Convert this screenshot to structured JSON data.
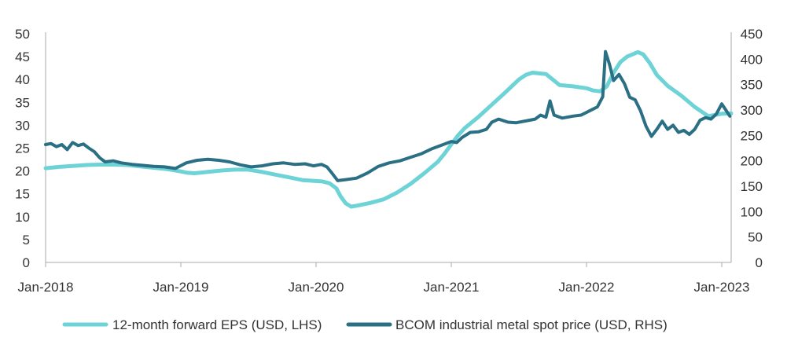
{
  "chart_data": {
    "type": "line",
    "title": "",
    "xlabel": "",
    "ylabel_left": "",
    "ylabel_right": "",
    "x_tick_labels": [
      "Jan-2018",
      "Jan-2019",
      "Jan-2020",
      "Jan-2021",
      "Jan-2022",
      "Jan-2023"
    ],
    "x_range": [
      2018.0,
      2023.07
    ],
    "left_axis": {
      "range": [
        0,
        50
      ],
      "ticks": [
        0,
        5,
        10,
        15,
        20,
        25,
        30,
        35,
        40,
        45,
        50
      ]
    },
    "right_axis": {
      "range": [
        0,
        450
      ],
      "ticks": [
        0,
        50,
        100,
        150,
        200,
        250,
        300,
        350,
        400,
        450
      ]
    },
    "legend_position": "bottom",
    "series": [
      {
        "name": "12-month forward EPS (USD, LHS)",
        "axis": "left",
        "color": "#6dd3d6",
        "points": [
          [
            2018.0,
            20.6
          ],
          [
            2018.1,
            20.9
          ],
          [
            2018.2,
            21.1
          ],
          [
            2018.3,
            21.3
          ],
          [
            2018.4,
            21.4
          ],
          [
            2018.5,
            21.4
          ],
          [
            2018.6,
            21.3
          ],
          [
            2018.7,
            21.0
          ],
          [
            2018.8,
            20.7
          ],
          [
            2018.9,
            20.4
          ],
          [
            2019.0,
            19.9
          ],
          [
            2019.05,
            19.6
          ],
          [
            2019.1,
            19.5
          ],
          [
            2019.2,
            19.8
          ],
          [
            2019.3,
            20.1
          ],
          [
            2019.4,
            20.3
          ],
          [
            2019.5,
            20.3
          ],
          [
            2019.6,
            19.8
          ],
          [
            2019.7,
            19.2
          ],
          [
            2019.8,
            18.6
          ],
          [
            2019.9,
            18.0
          ],
          [
            2020.0,
            17.8
          ],
          [
            2020.05,
            17.7
          ],
          [
            2020.1,
            17.3
          ],
          [
            2020.15,
            16.2
          ],
          [
            2020.18,
            14.5
          ],
          [
            2020.22,
            12.9
          ],
          [
            2020.26,
            12.2
          ],
          [
            2020.3,
            12.4
          ],
          [
            2020.4,
            13.0
          ],
          [
            2020.5,
            13.8
          ],
          [
            2020.6,
            15.3
          ],
          [
            2020.7,
            17.2
          ],
          [
            2020.8,
            19.5
          ],
          [
            2020.9,
            22.0
          ],
          [
            2020.95,
            23.8
          ],
          [
            2021.0,
            25.8
          ],
          [
            2021.05,
            27.8
          ],
          [
            2021.1,
            29.4
          ],
          [
            2021.2,
            31.8
          ],
          [
            2021.3,
            34.5
          ],
          [
            2021.4,
            37.2
          ],
          [
            2021.5,
            40.0
          ],
          [
            2021.55,
            41.0
          ],
          [
            2021.6,
            41.5
          ],
          [
            2021.7,
            41.2
          ],
          [
            2021.75,
            40.0
          ],
          [
            2021.8,
            38.8
          ],
          [
            2021.9,
            38.5
          ],
          [
            2022.0,
            38.1
          ],
          [
            2022.05,
            37.6
          ],
          [
            2022.1,
            37.4
          ],
          [
            2022.15,
            38.5
          ],
          [
            2022.2,
            41.5
          ],
          [
            2022.25,
            43.8
          ],
          [
            2022.3,
            45.0
          ],
          [
            2022.38,
            46.0
          ],
          [
            2022.42,
            45.5
          ],
          [
            2022.47,
            43.5
          ],
          [
            2022.52,
            41.0
          ],
          [
            2022.6,
            38.6
          ],
          [
            2022.7,
            36.5
          ],
          [
            2022.8,
            34.0
          ],
          [
            2022.9,
            32.0
          ],
          [
            2023.0,
            32.5
          ],
          [
            2023.07,
            32.6
          ]
        ]
      },
      {
        "name": "BCOM industrial metal spot price (USD, RHS)",
        "axis": "right",
        "color": "#2a6f84",
        "points": [
          [
            2018.0,
            232
          ],
          [
            2018.04,
            234
          ],
          [
            2018.08,
            228
          ],
          [
            2018.12,
            232
          ],
          [
            2018.16,
            222
          ],
          [
            2018.2,
            236
          ],
          [
            2018.24,
            230
          ],
          [
            2018.28,
            233
          ],
          [
            2018.32,
            225
          ],
          [
            2018.36,
            218
          ],
          [
            2018.4,
            206
          ],
          [
            2018.44,
            198
          ],
          [
            2018.5,
            200
          ],
          [
            2018.56,
            196
          ],
          [
            2018.64,
            193
          ],
          [
            2018.72,
            191
          ],
          [
            2018.8,
            189
          ],
          [
            2018.88,
            188
          ],
          [
            2018.96,
            185
          ],
          [
            2019.04,
            196
          ],
          [
            2019.12,
            201
          ],
          [
            2019.2,
            203
          ],
          [
            2019.28,
            201
          ],
          [
            2019.36,
            198
          ],
          [
            2019.44,
            192
          ],
          [
            2019.52,
            188
          ],
          [
            2019.6,
            190
          ],
          [
            2019.68,
            194
          ],
          [
            2019.76,
            196
          ],
          [
            2019.84,
            193
          ],
          [
            2019.92,
            194
          ],
          [
            2019.98,
            190
          ],
          [
            2020.04,
            193
          ],
          [
            2020.08,
            188
          ],
          [
            2020.12,
            175
          ],
          [
            2020.16,
            161
          ],
          [
            2020.22,
            163
          ],
          [
            2020.3,
            166
          ],
          [
            2020.38,
            176
          ],
          [
            2020.46,
            189
          ],
          [
            2020.54,
            196
          ],
          [
            2020.62,
            200
          ],
          [
            2020.7,
            207
          ],
          [
            2020.78,
            214
          ],
          [
            2020.86,
            224
          ],
          [
            2020.94,
            232
          ],
          [
            2021.0,
            238
          ],
          [
            2021.04,
            236
          ],
          [
            2021.08,
            246
          ],
          [
            2021.14,
            256
          ],
          [
            2021.2,
            257
          ],
          [
            2021.26,
            262
          ],
          [
            2021.3,
            276
          ],
          [
            2021.35,
            282
          ],
          [
            2021.42,
            276
          ],
          [
            2021.48,
            275
          ],
          [
            2021.56,
            279
          ],
          [
            2021.62,
            282
          ],
          [
            2021.66,
            290
          ],
          [
            2021.7,
            286
          ],
          [
            2021.73,
            318
          ],
          [
            2021.76,
            290
          ],
          [
            2021.82,
            284
          ],
          [
            2021.9,
            288
          ],
          [
            2021.96,
            290
          ],
          [
            2022.02,
            298
          ],
          [
            2022.08,
            306
          ],
          [
            2022.12,
            326
          ],
          [
            2022.14,
            415
          ],
          [
            2022.17,
            390
          ],
          [
            2022.2,
            358
          ],
          [
            2022.24,
            370
          ],
          [
            2022.28,
            352
          ],
          [
            2022.32,
            325
          ],
          [
            2022.36,
            320
          ],
          [
            2022.4,
            298
          ],
          [
            2022.44,
            268
          ],
          [
            2022.48,
            248
          ],
          [
            2022.52,
            262
          ],
          [
            2022.56,
            278
          ],
          [
            2022.6,
            262
          ],
          [
            2022.64,
            270
          ],
          [
            2022.68,
            256
          ],
          [
            2022.72,
            260
          ],
          [
            2022.76,
            252
          ],
          [
            2022.8,
            262
          ],
          [
            2022.84,
            280
          ],
          [
            2022.88,
            285
          ],
          [
            2022.92,
            282
          ],
          [
            2022.96,
            292
          ],
          [
            2023.0,
            312
          ],
          [
            2023.03,
            300
          ],
          [
            2023.06,
            288
          ]
        ]
      }
    ]
  }
}
